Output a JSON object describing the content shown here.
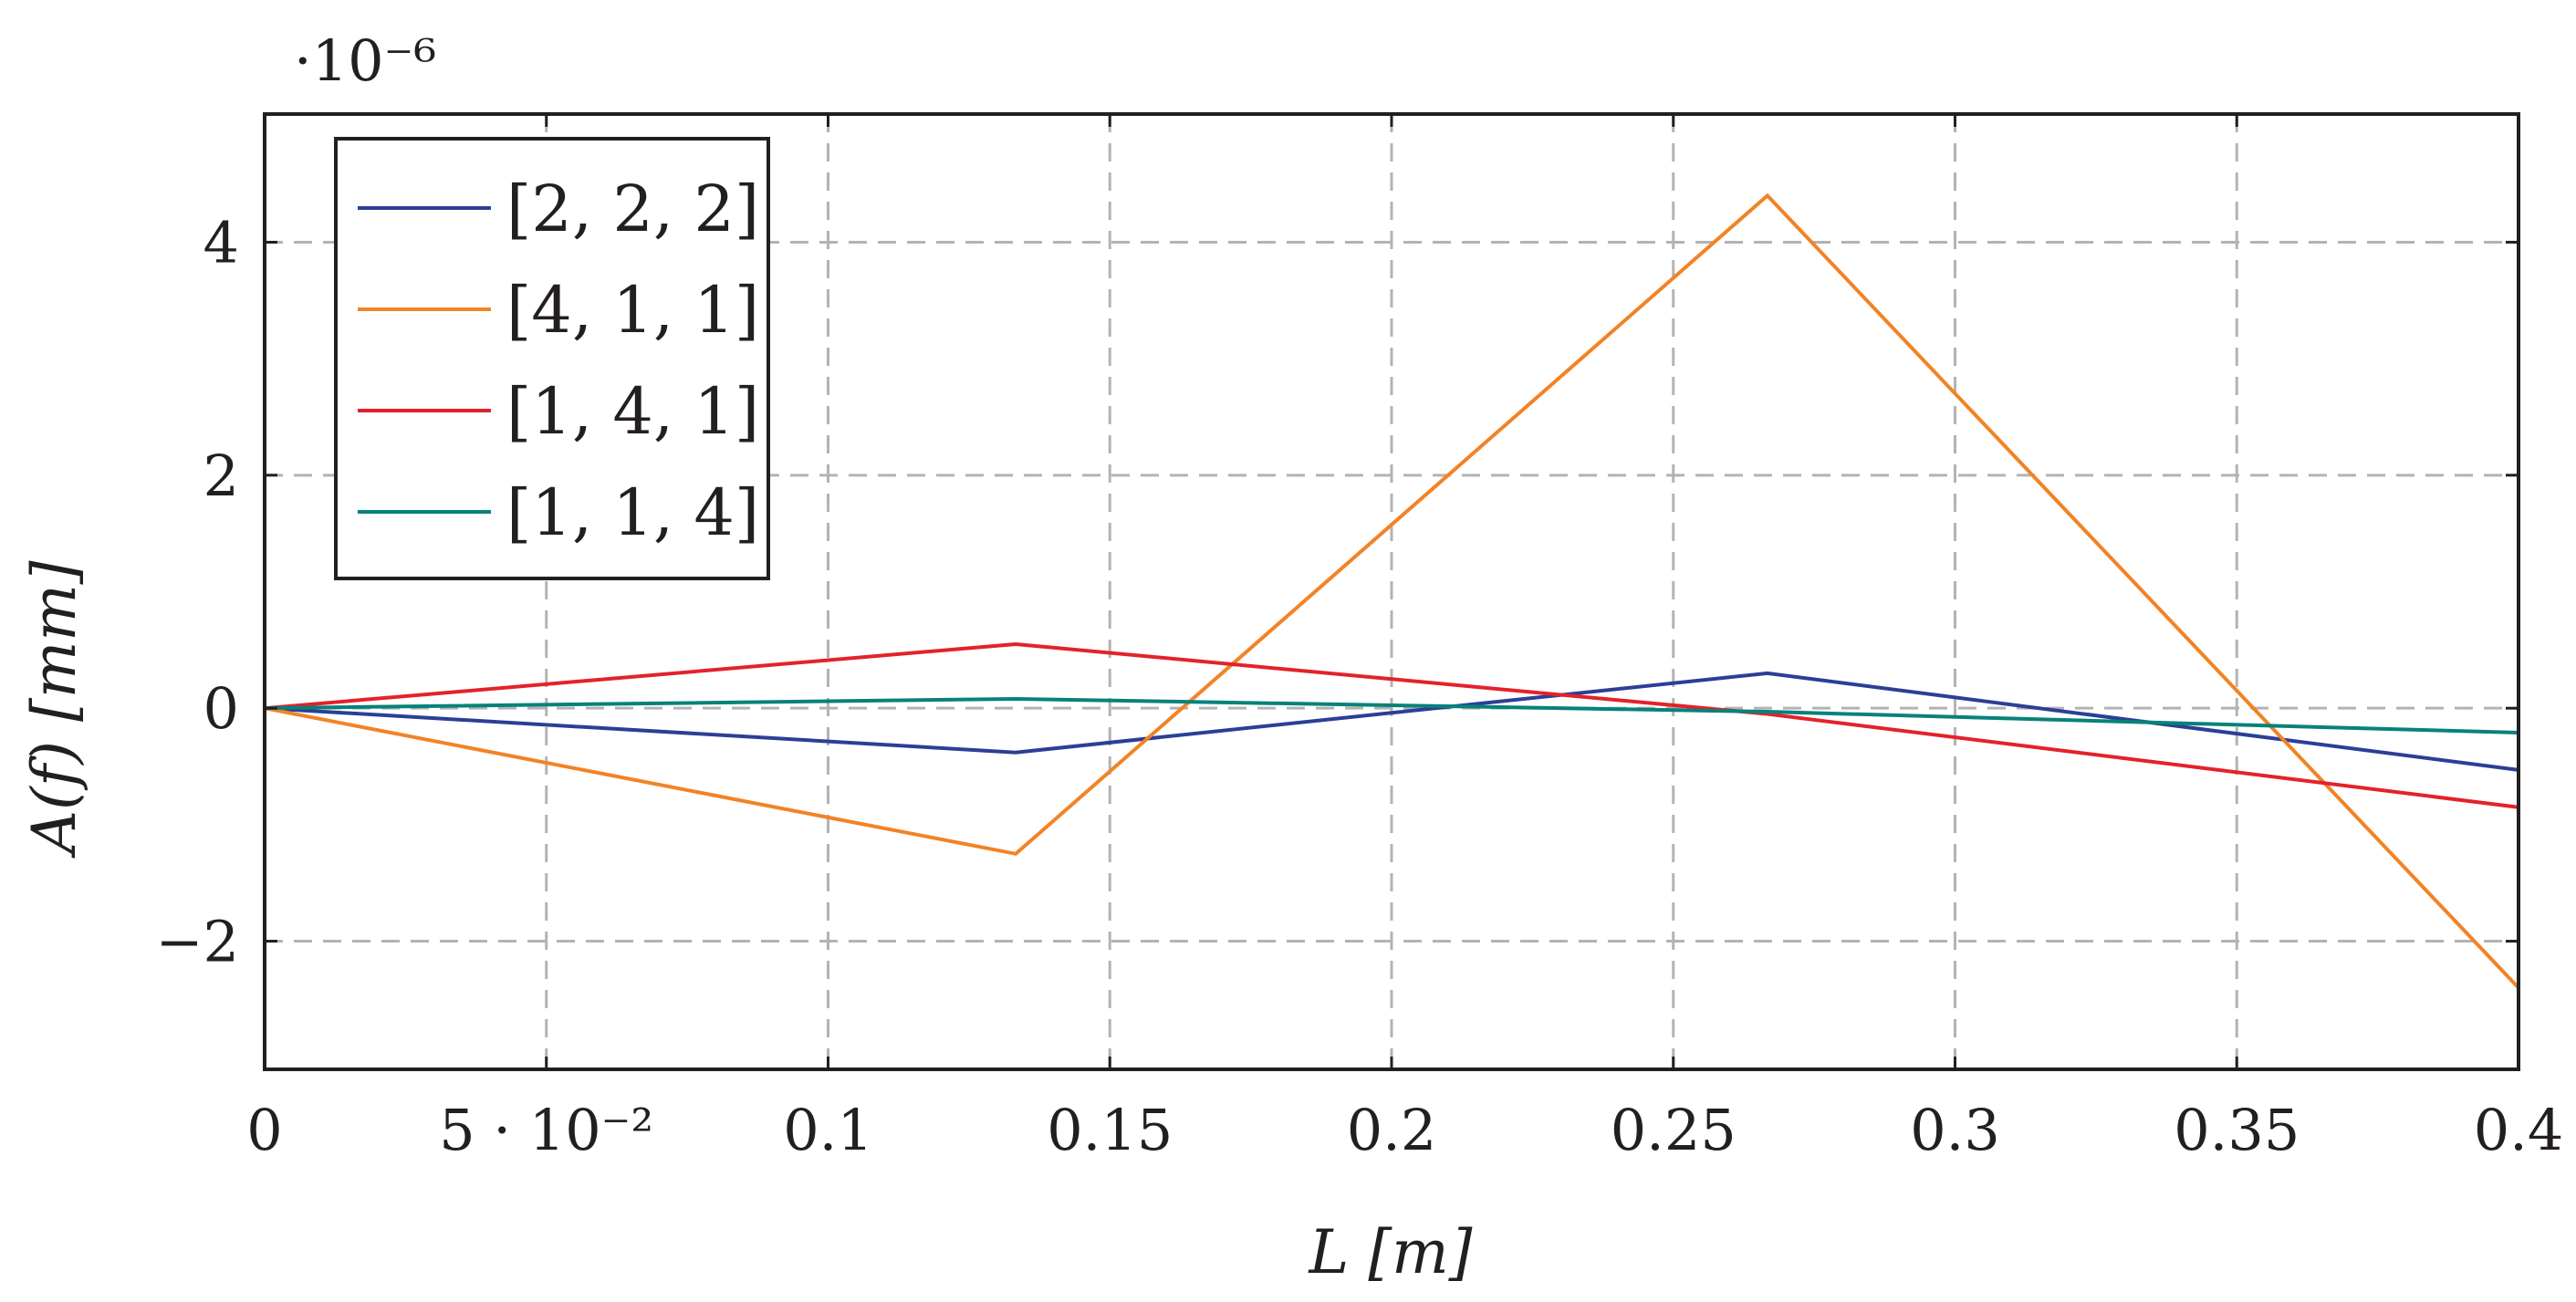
{
  "chart_data": {
    "type": "line",
    "title": "",
    "xlabel": "L [m]",
    "ylabel": "A(f) [mm]",
    "y_scale_label": "·10⁻⁶",
    "xlim": [
      0,
      0.4
    ],
    "ylim": [
      -3.1,
      5.1
    ],
    "grid": true,
    "legend_position": "top-left",
    "x_ticks": [
      0,
      0.05,
      0.1,
      0.15,
      0.2,
      0.25,
      0.3,
      0.35,
      0.4
    ],
    "x_tick_labels": [
      "0",
      "5 · 10⁻²",
      "0.1",
      "0.15",
      "0.2",
      "0.25",
      "0.3",
      "0.35",
      "0.4"
    ],
    "y_ticks": [
      -2,
      0,
      2,
      4
    ],
    "y_tick_labels": [
      "−2",
      "0",
      "2",
      "4"
    ],
    "x": [
      0,
      0.1333,
      0.2667,
      0.4
    ],
    "series": [
      {
        "name": "[2, 2, 2]",
        "color": "#2b3f96",
        "values": [
          0,
          -0.38,
          0.3,
          -0.53
        ]
      },
      {
        "name": "[4, 1, 1]",
        "color": "#f28325",
        "values": [
          0,
          -1.25,
          4.4,
          -2.4
        ]
      },
      {
        "name": "[1, 4, 1]",
        "color": "#e3222a",
        "values": [
          0,
          0.55,
          -0.05,
          -0.85
        ]
      },
      {
        "name": "[1, 1, 4]",
        "color": "#07827a",
        "values": [
          0,
          0.08,
          -0.03,
          -0.21
        ]
      }
    ]
  }
}
